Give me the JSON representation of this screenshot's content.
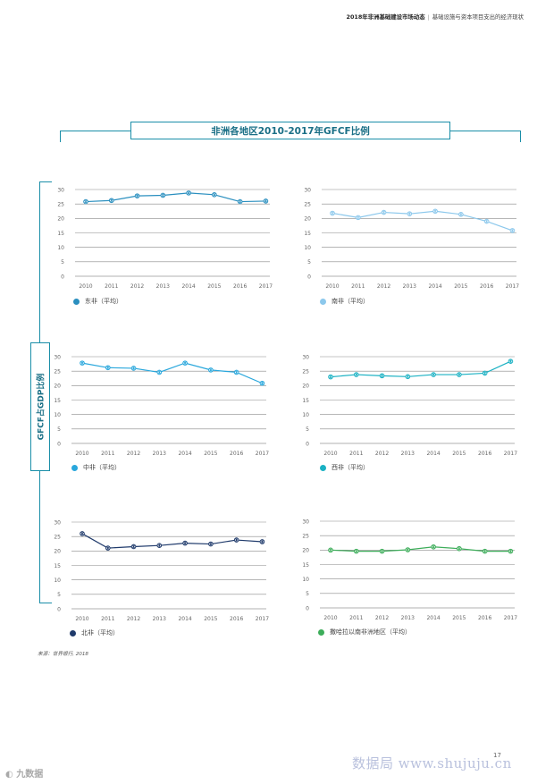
{
  "header": {
    "title": "2018年非洲基础建设市场动态",
    "separator": "|",
    "subtitle": "基础设施与资本项目支出的经济现状"
  },
  "figure": {
    "title": "非洲各地区2010-2017年GFCF比例",
    "y_axis_label": "GFCF占GDP比例"
  },
  "source": "来源：世界银行, 2018",
  "page_number": "17",
  "watermark": "数据局 www.shujuju.cn",
  "logo_text": "九数据",
  "chart_data": [
    {
      "type": "line",
      "name": "东非（平均）",
      "legend": "东非（平均）",
      "color": "#2a8fbf",
      "categories": [
        "2010",
        "2011",
        "2012",
        "2013",
        "2014",
        "2015",
        "2016",
        "2017"
      ],
      "values": [
        25.8,
        26.2,
        27.8,
        28.0,
        28.8,
        28.2,
        25.8,
        26.0
      ],
      "yticks": [
        "30",
        "25",
        "20",
        "15",
        "10",
        "5",
        "0"
      ],
      "ylim": [
        0,
        30
      ]
    },
    {
      "type": "line",
      "name": "南非（平均）",
      "legend": "南非（平均）",
      "color": "#8cc8ec",
      "categories": [
        "2010",
        "2011",
        "2012",
        "2013",
        "2014",
        "2015",
        "2016",
        "2017"
      ],
      "values": [
        21.8,
        20.3,
        22.1,
        21.6,
        22.5,
        21.4,
        19.0,
        15.8
      ],
      "yticks": [
        "30",
        "25",
        "20",
        "15",
        "10",
        "5",
        "0"
      ],
      "ylim": [
        0,
        30
      ]
    },
    {
      "type": "line",
      "name": "中非（平均）",
      "legend": "中非（平均）",
      "color": "#29a7dc",
      "categories": [
        "2010",
        "2011",
        "2012",
        "2013",
        "2014",
        "2015",
        "2016",
        "2017"
      ],
      "values": [
        27.8,
        26.2,
        26.0,
        24.6,
        27.8,
        25.4,
        24.6,
        20.8
      ],
      "yticks": [
        "30",
        "25",
        "20",
        "15",
        "10",
        "5",
        "0"
      ],
      "ylim": [
        0,
        30
      ]
    },
    {
      "type": "line",
      "name": "西非（平均）",
      "legend": "西非（平均）",
      "color": "#1ab1c3",
      "categories": [
        "2010",
        "2011",
        "2012",
        "2013",
        "2014",
        "2015",
        "2016",
        "2017"
      ],
      "values": [
        23.0,
        23.8,
        23.4,
        23.1,
        23.8,
        23.8,
        24.3,
        28.4
      ],
      "yticks": [
        "30",
        "25",
        "20",
        "15",
        "10",
        "5",
        "0"
      ],
      "ylim": [
        0,
        30
      ]
    },
    {
      "type": "line",
      "name": "北非（平均）",
      "legend": "北非（平均）",
      "color": "#1f3a6b",
      "categories": [
        "2010",
        "2011",
        "2012",
        "2013",
        "2014",
        "2015",
        "2016",
        "2017"
      ],
      "values": [
        26.0,
        21.0,
        21.5,
        21.9,
        22.7,
        22.4,
        23.8,
        23.2
      ],
      "yticks": [
        "30",
        "25",
        "20",
        "15",
        "10",
        "5",
        "0"
      ],
      "ylim": [
        0,
        30
      ]
    },
    {
      "type": "line",
      "name": "撒哈拉以南非洲地区（平均）",
      "legend": "撒哈拉以南非洲地区（平均）",
      "color": "#3dad5a",
      "categories": [
        "2010",
        "2011",
        "2012",
        "2013",
        "2014",
        "2015",
        "2016",
        "2017"
      ],
      "values": [
        20.0,
        19.6,
        19.6,
        20.1,
        21.1,
        20.5,
        19.6,
        19.6
      ],
      "yticks": [
        "30",
        "25",
        "20",
        "15",
        "10",
        "5",
        "0"
      ],
      "ylim": [
        0,
        30
      ]
    }
  ]
}
